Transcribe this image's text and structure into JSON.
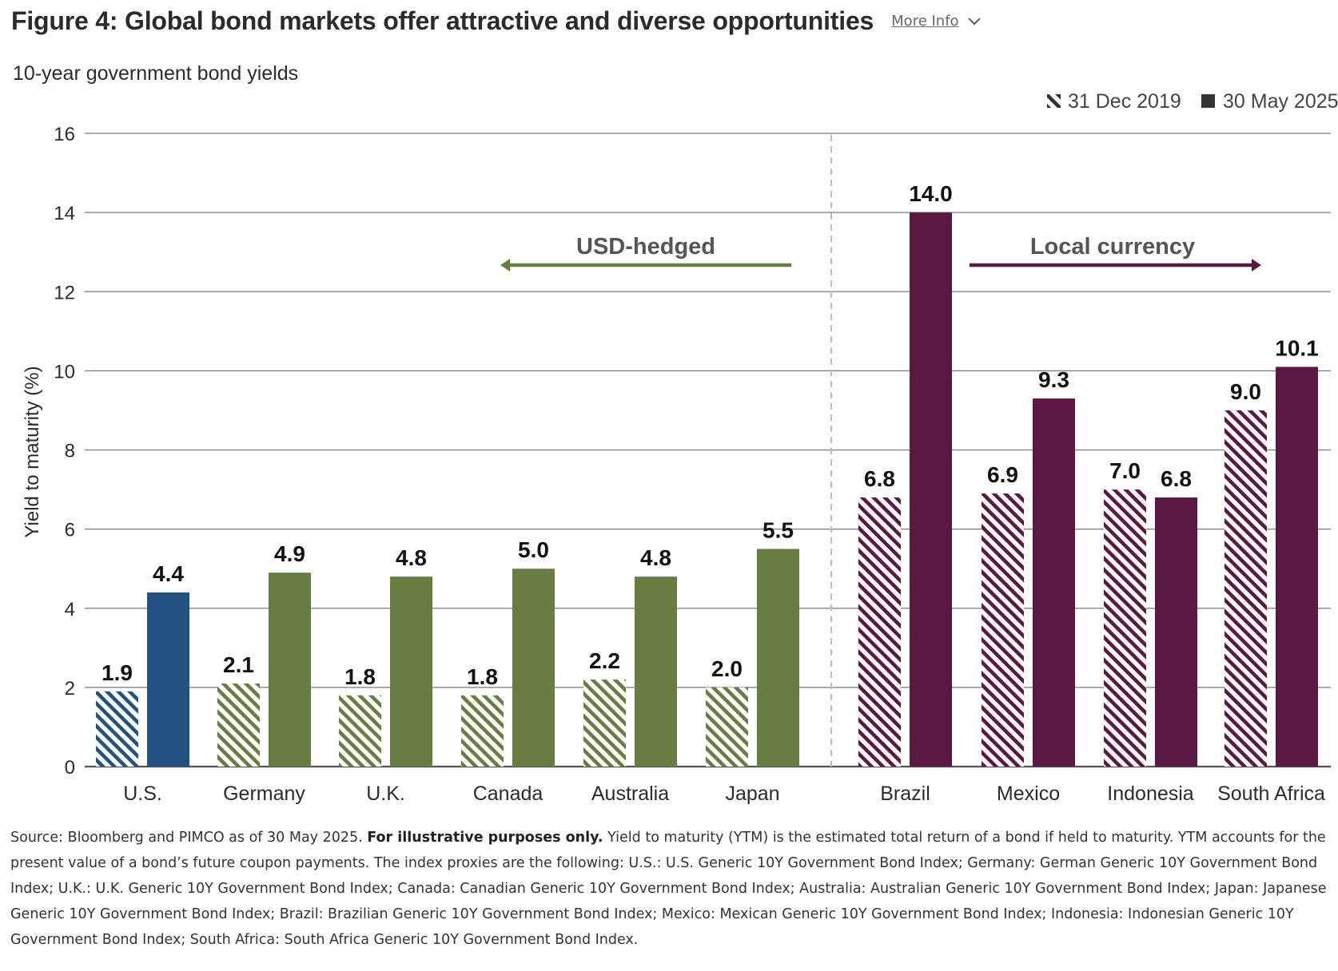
{
  "header": {
    "title": "Figure 4: Global bond markets offer attractive and diverse opportunities",
    "more_info_label": "More Info"
  },
  "chart_data": {
    "type": "bar",
    "title": "10-year government bond yields",
    "ylabel": "Yield to maturity (%)",
    "xlabel": "",
    "ylim": [
      0,
      16
    ],
    "yticks": [
      0,
      2,
      4,
      6,
      8,
      10,
      12,
      14,
      16
    ],
    "grid": true,
    "legend_position": "top-right",
    "categories": [
      "U.S.",
      "Germany",
      "U.K.",
      "Canada",
      "Australia",
      "Japan",
      "Brazil",
      "Mexico",
      "Indonesia",
      "South Africa"
    ],
    "series": [
      {
        "name": "31 Dec 2019",
        "pattern": "hatched",
        "values": [
          1.9,
          2.1,
          1.8,
          1.8,
          2.2,
          2.0,
          6.8,
          6.9,
          7.0,
          9.0
        ]
      },
      {
        "name": "30 May 2025",
        "pattern": "solid",
        "values": [
          4.4,
          4.9,
          4.8,
          5.0,
          4.8,
          5.5,
          14.0,
          9.3,
          6.8,
          10.1
        ]
      }
    ],
    "category_colors": [
      "#22527f",
      "#677d42",
      "#677d42",
      "#677d42",
      "#677d42",
      "#677d42",
      "#5b1942",
      "#5b1942",
      "#5b1942",
      "#5b1942"
    ],
    "legend_color": "#333333",
    "groups": [
      {
        "label": "USD-hedged",
        "direction": "left",
        "color": "#677d42"
      },
      {
        "label": "Local currency",
        "direction": "right",
        "color": "#5b1942"
      }
    ]
  },
  "footnote": {
    "prefix": "Source: Bloomberg and PIMCO as of 30 May 2025. ",
    "bold": "For illustrative purposes only.",
    "rest": " Yield to maturity (YTM) is the estimated total return of a bond if held to maturity. YTM accounts for the present value of a bond’s future coupon payments. The index proxies are the following: U.S.: U.S. Generic 10Y Government Bond Index; Germany: German Generic 10Y Government Bond Index; U.K.: U.K. Generic 10Y Government Bond Index; Canada: Canadian Generic 10Y Government Bond Index; Australia: Australian Generic 10Y Government Bond Index; Japan: Japanese Generic 10Y Government Bond Index; Brazil: Brazilian Generic 10Y Government Bond Index; Mexico: Mexican Generic 10Y Government Bond Index; Indonesia: Indonesian Generic 10Y Government Bond Index; South Africa: South Africa Generic 10Y Government Bond Index."
  }
}
